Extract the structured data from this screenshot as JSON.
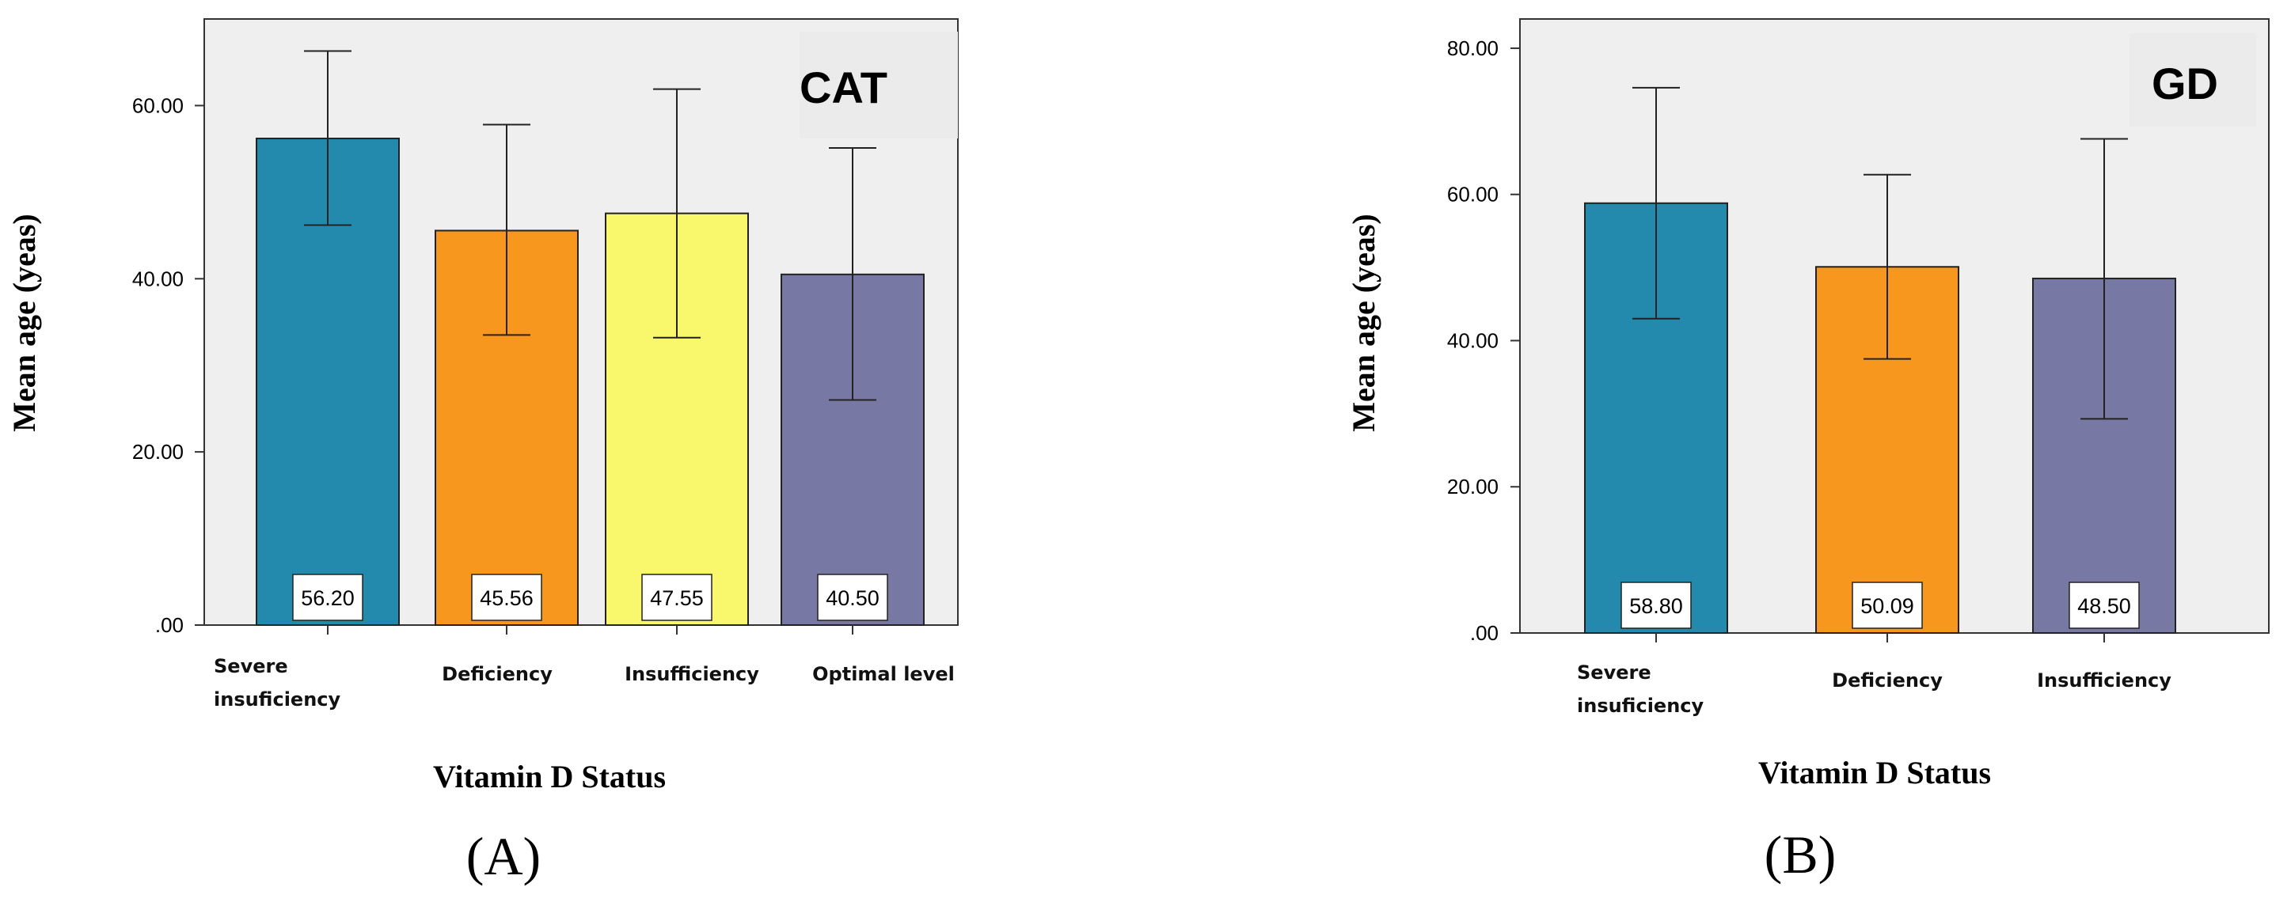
{
  "chart_data": [
    {
      "type": "bar",
      "title": "CAT",
      "panel_label": "(A)",
      "xlabel": "Vitamin D Status",
      "ylabel": "Mean age (yeas)",
      "ylim": [
        0,
        70
      ],
      "yticks": [
        ".00",
        "20.00",
        "40.00",
        "60.00"
      ],
      "categories": [
        [
          "Severe",
          "insuficiency"
        ],
        [
          "Deficiency"
        ],
        [
          "Insufficiency"
        ],
        [
          "Optimal level"
        ]
      ],
      "values": [
        56.2,
        45.56,
        47.55,
        40.5
      ],
      "data_labels": [
        "56.20",
        "45.56",
        "47.55",
        "40.50"
      ],
      "err_low": [
        46.2,
        33.5,
        33.2,
        26.0
      ],
      "err_high": [
        66.3,
        57.8,
        61.9,
        55.1
      ],
      "colors": [
        "#2389ad",
        "#f7971d",
        "#f9f76c",
        "#7878a5"
      ]
    },
    {
      "type": "bar",
      "title": "GD",
      "panel_label": "(B)",
      "xlabel": "Vitamin D Status",
      "ylabel": "Mean age (yeas)",
      "ylim": [
        0,
        84
      ],
      "yticks": [
        ".00",
        "20.00",
        "40.00",
        "60.00",
        "80.00"
      ],
      "categories": [
        [
          "Severe",
          "insuficiency"
        ],
        [
          "Deficiency"
        ],
        [
          "Insufficiency"
        ]
      ],
      "values": [
        58.8,
        50.09,
        48.5
      ],
      "data_labels": [
        "58.80",
        "50.09",
        "48.50"
      ],
      "err_low": [
        43.0,
        37.5,
        29.3
      ],
      "err_high": [
        74.6,
        62.7,
        67.6
      ],
      "colors": [
        "#2389ad",
        "#f7971d",
        "#7878a5"
      ]
    }
  ]
}
